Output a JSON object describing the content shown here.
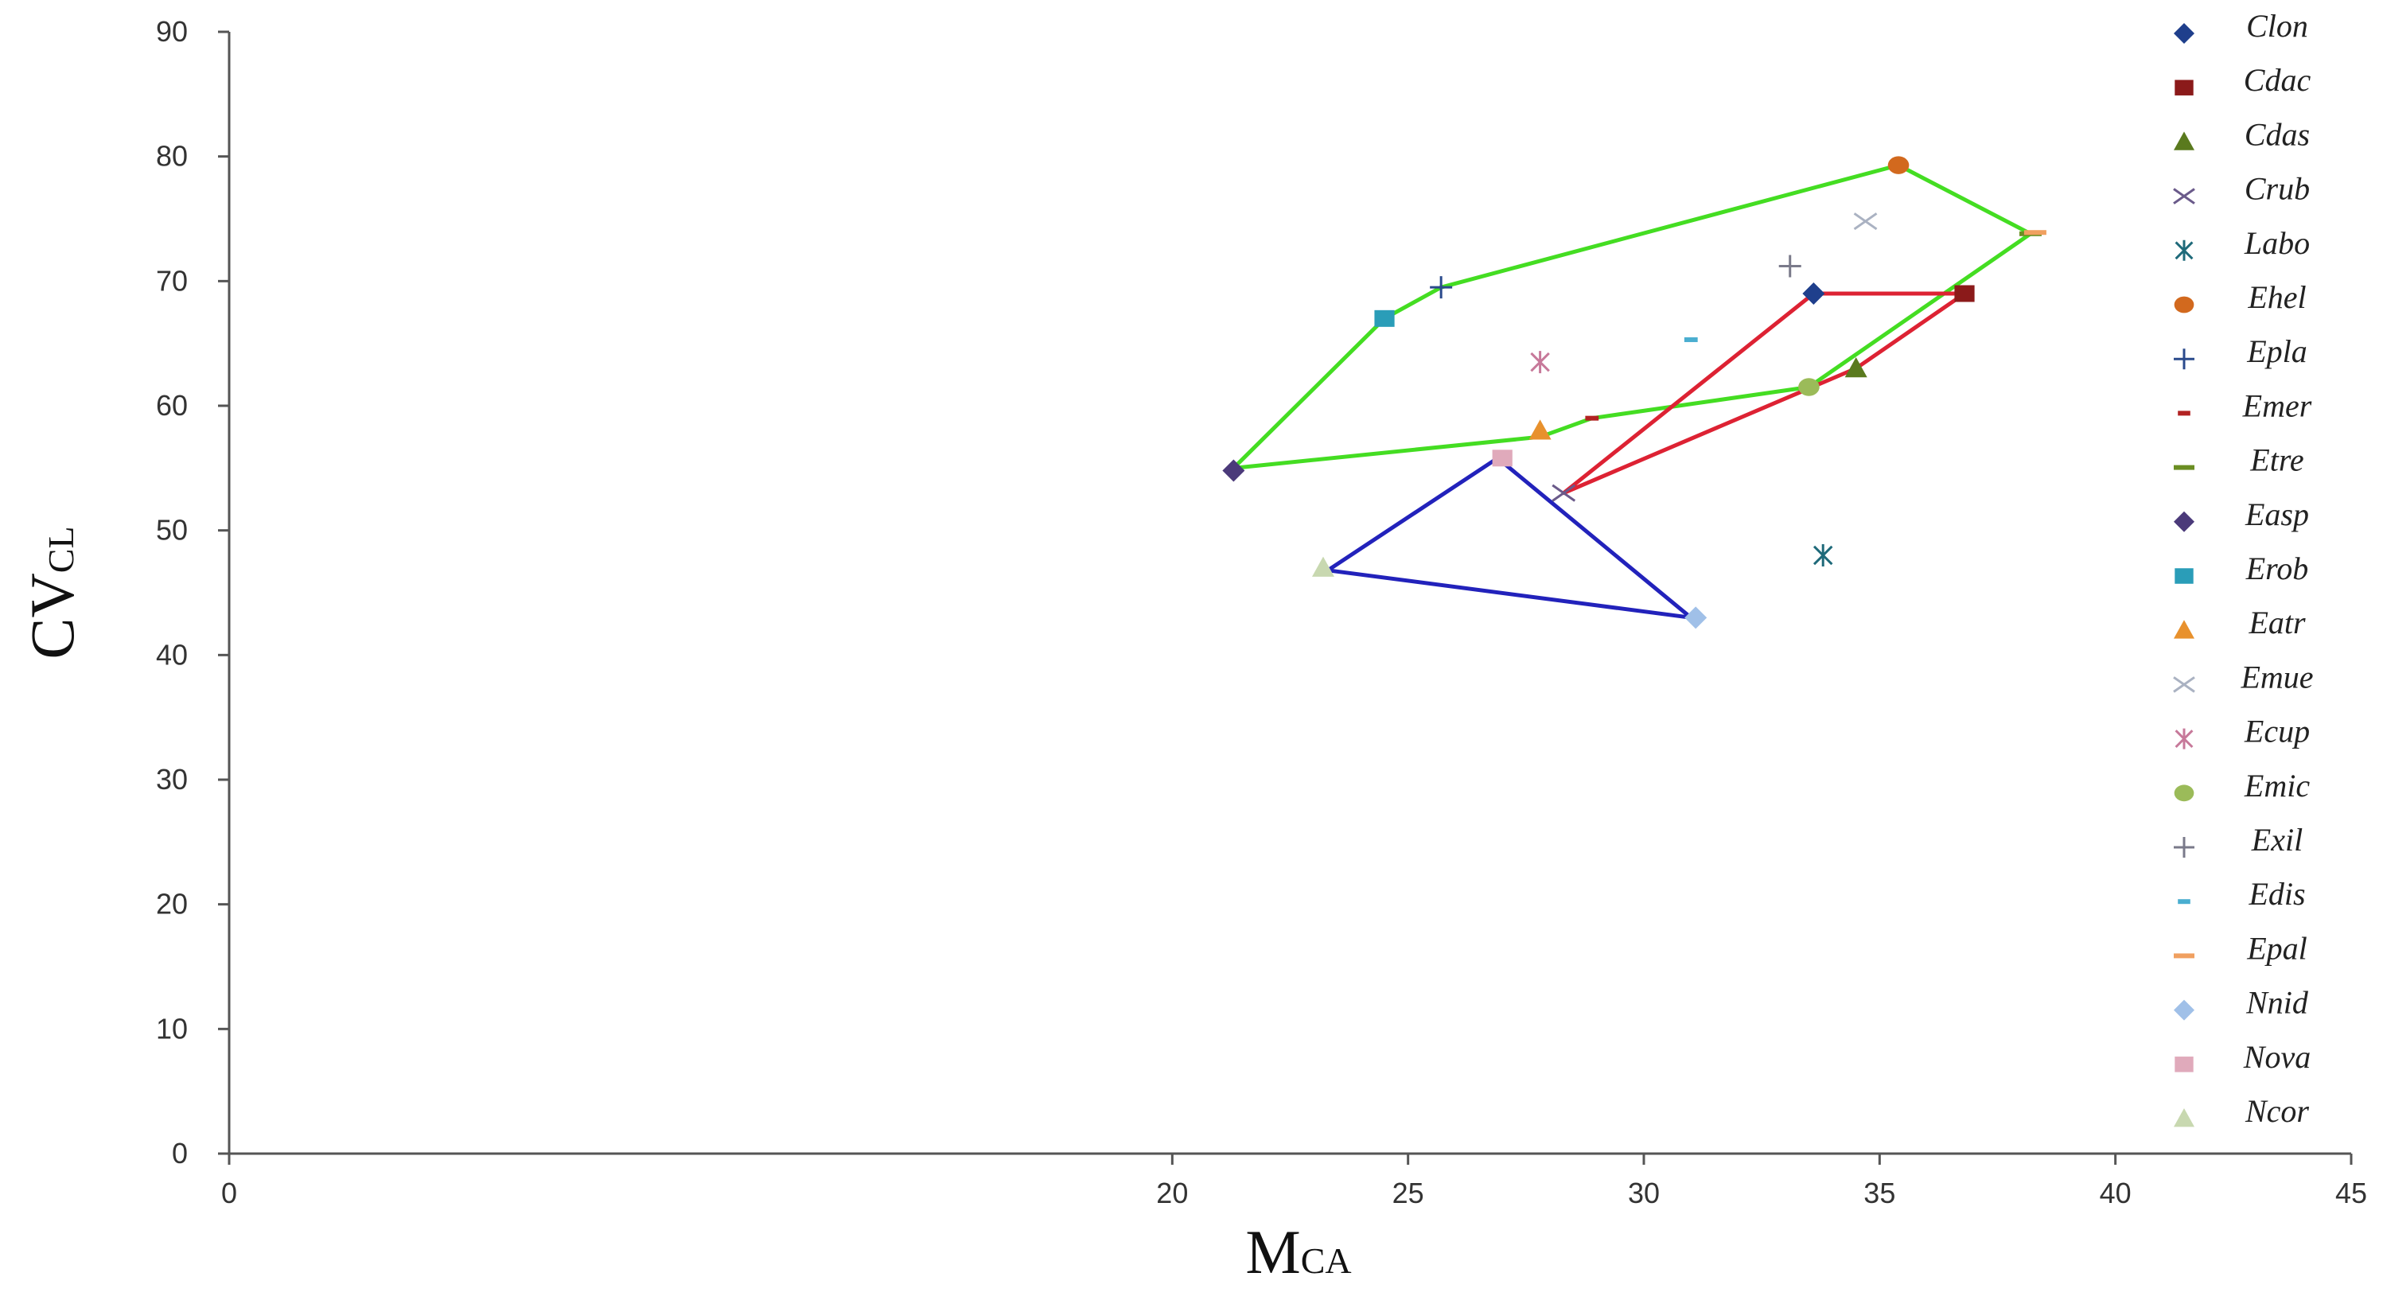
{
  "chart_data": {
    "type": "scatter",
    "title": "",
    "xlabel": {
      "main": "M",
      "sub": "CA"
    },
    "ylabel": {
      "main": "CV",
      "sub": "CL"
    },
    "xlim": [
      0,
      45
    ],
    "ylim": [
      0,
      90
    ],
    "x_ticks": [
      0,
      20,
      25,
      30,
      35,
      40,
      45
    ],
    "y_ticks": [
      0,
      10,
      20,
      30,
      40,
      50,
      60,
      70,
      80,
      90
    ],
    "legend_position": "right",
    "grid": false,
    "series": [
      {
        "name": "Clon",
        "color": "#1f3f8c",
        "marker": "diamond",
        "x": 33.6,
        "y": 69
      },
      {
        "name": "Cdac",
        "color": "#8b1a1a",
        "marker": "square",
        "x": 36.8,
        "y": 69
      },
      {
        "name": "Cdas",
        "color": "#5a7a1e",
        "marker": "triangle",
        "x": 34.5,
        "y": 63
      },
      {
        "name": "Crub",
        "color": "#6a5a8a",
        "marker": "x",
        "x": 28.3,
        "y": 53
      },
      {
        "name": "Labo",
        "color": "#1f6a7a",
        "marker": "asterisk",
        "x": 33.8,
        "y": 48
      },
      {
        "name": "Ehel",
        "color": "#d2691e",
        "marker": "circle",
        "x": 35.4,
        "y": 79.3
      },
      {
        "name": "Epla",
        "color": "#2a4a8c",
        "marker": "plus",
        "x": 25.7,
        "y": 69.5
      },
      {
        "name": "Emer",
        "color": "#b22222",
        "marker": "dash",
        "x": 28.9,
        "y": 59
      },
      {
        "name": "Etre",
        "color": "#6b8e23",
        "marker": "longdash",
        "x": 38.2,
        "y": 73.8
      },
      {
        "name": "Easp",
        "color": "#4b3a7a",
        "marker": "diamond",
        "x": 21.3,
        "y": 54.8
      },
      {
        "name": "Erob",
        "color": "#2a9db8",
        "marker": "square",
        "x": 24.5,
        "y": 67
      },
      {
        "name": "Eatr",
        "color": "#e8912d",
        "marker": "triangle",
        "x": 27.8,
        "y": 58
      },
      {
        "name": "Emue",
        "color": "#aab2c2",
        "marker": "x",
        "x": 34.7,
        "y": 74.8
      },
      {
        "name": "Ecup",
        "color": "#c7799a",
        "marker": "asterisk",
        "x": 27.8,
        "y": 63.5
      },
      {
        "name": "Emic",
        "color": "#9bbb59",
        "marker": "circle",
        "x": 33.5,
        "y": 61.5
      },
      {
        "name": "Exil",
        "color": "#7a7a8a",
        "marker": "plus",
        "x": 33.1,
        "y": 71.2
      },
      {
        "name": "Edis",
        "color": "#4aaed0",
        "marker": "dash",
        "x": 31.0,
        "y": 65.3
      },
      {
        "name": "Epal",
        "color": "#f0a060",
        "marker": "longdash",
        "x": 38.3,
        "y": 73.9
      },
      {
        "name": "Nnid",
        "color": "#a0c0e8",
        "marker": "diamond",
        "x": 31.1,
        "y": 43
      },
      {
        "name": "Nova",
        "color": "#e0aabb",
        "marker": "square",
        "x": 27.0,
        "y": 55.8
      },
      {
        "name": "Ncor",
        "color": "#c8d8b0",
        "marker": "triangle",
        "x": 23.2,
        "y": 47
      }
    ],
    "hulls": [
      {
        "color": "#44dd22",
        "points": [
          [
            21.3,
            55
          ],
          [
            24.5,
            67
          ],
          [
            25.7,
            69.5
          ],
          [
            35.4,
            79.3
          ],
          [
            38.2,
            73.8
          ],
          [
            33.5,
            61.5
          ],
          [
            28.9,
            59
          ],
          [
            27.8,
            57.5
          ],
          [
            21.3,
            55
          ]
        ]
      },
      {
        "color": "#dd2233",
        "points": [
          [
            33.6,
            69
          ],
          [
            36.8,
            69
          ],
          [
            34.5,
            63
          ],
          [
            28.3,
            53
          ],
          [
            33.6,
            69
          ]
        ]
      },
      {
        "color": "#2222bb",
        "points": [
          [
            26.9,
            55.8
          ],
          [
            31.0,
            43
          ],
          [
            23.3,
            46.8
          ],
          [
            26.9,
            55.8
          ]
        ]
      }
    ]
  }
}
